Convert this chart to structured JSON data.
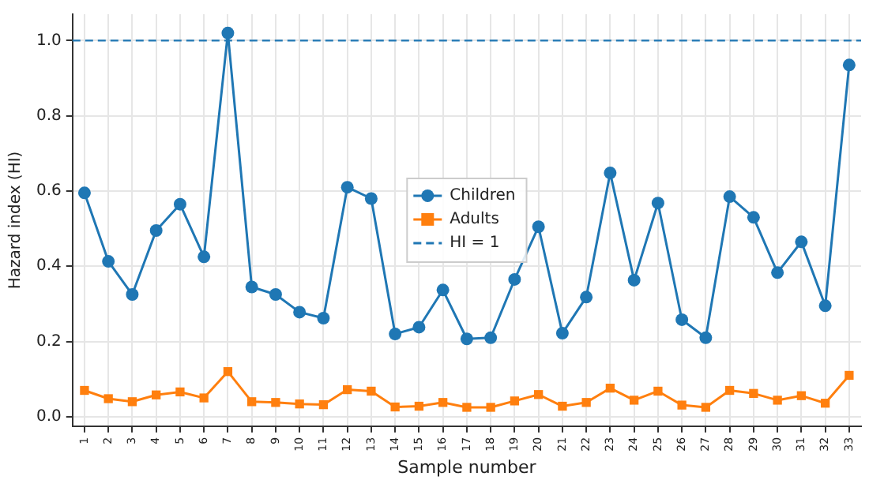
{
  "chart_data": {
    "type": "line",
    "xlabel": "Sample number",
    "ylabel": "Hazard index (HI)",
    "categories": [
      "1",
      "2",
      "3",
      "4",
      "5",
      "6",
      "7",
      "8",
      "9",
      "10",
      "11",
      "12",
      "13",
      "14",
      "15",
      "16",
      "17",
      "18",
      "19",
      "20",
      "21",
      "22",
      "23",
      "24",
      "25",
      "26",
      "27",
      "28",
      "29",
      "30",
      "31",
      "32",
      "33"
    ],
    "series": [
      {
        "name": "Children",
        "color": "#1f77b4",
        "marker": "circle",
        "values": [
          0.595,
          0.413,
          0.325,
          0.495,
          0.565,
          0.425,
          1.02,
          0.345,
          0.325,
          0.278,
          0.262,
          0.61,
          0.58,
          0.22,
          0.238,
          0.337,
          0.207,
          0.21,
          0.365,
          0.505,
          0.222,
          0.318,
          0.648,
          0.363,
          0.568,
          0.258,
          0.21,
          0.585,
          0.53,
          0.383,
          0.465,
          0.295,
          0.935
        ]
      },
      {
        "name": "Adults",
        "color": "#ff7f0e",
        "marker": "square",
        "values": [
          0.07,
          0.048,
          0.04,
          0.058,
          0.066,
          0.05,
          0.12,
          0.04,
          0.038,
          0.034,
          0.032,
          0.072,
          0.068,
          0.026,
          0.028,
          0.038,
          0.025,
          0.025,
          0.042,
          0.059,
          0.028,
          0.038,
          0.076,
          0.044,
          0.068,
          0.031,
          0.025,
          0.07,
          0.062,
          0.044,
          0.056,
          0.036,
          0.11
        ]
      }
    ],
    "ref_lines": [
      {
        "axis": "y",
        "value": 1,
        "label": "HI = 1",
        "color": "#1f77b4",
        "line_style": "dashed"
      }
    ],
    "ylim": [
      -0.025,
      1.07
    ],
    "yticks": [
      {
        "value": 0,
        "label": "0.0"
      },
      {
        "value": 0.2,
        "label": "0.2"
      },
      {
        "value": 0.4,
        "label": "0.4"
      },
      {
        "value": 0.6,
        "label": "0.6"
      },
      {
        "value": 0.8,
        "label": "0.8"
      },
      {
        "value": 1,
        "label": "1.0"
      }
    ],
    "grid": true,
    "legend": "center",
    "line_style": "solid"
  }
}
